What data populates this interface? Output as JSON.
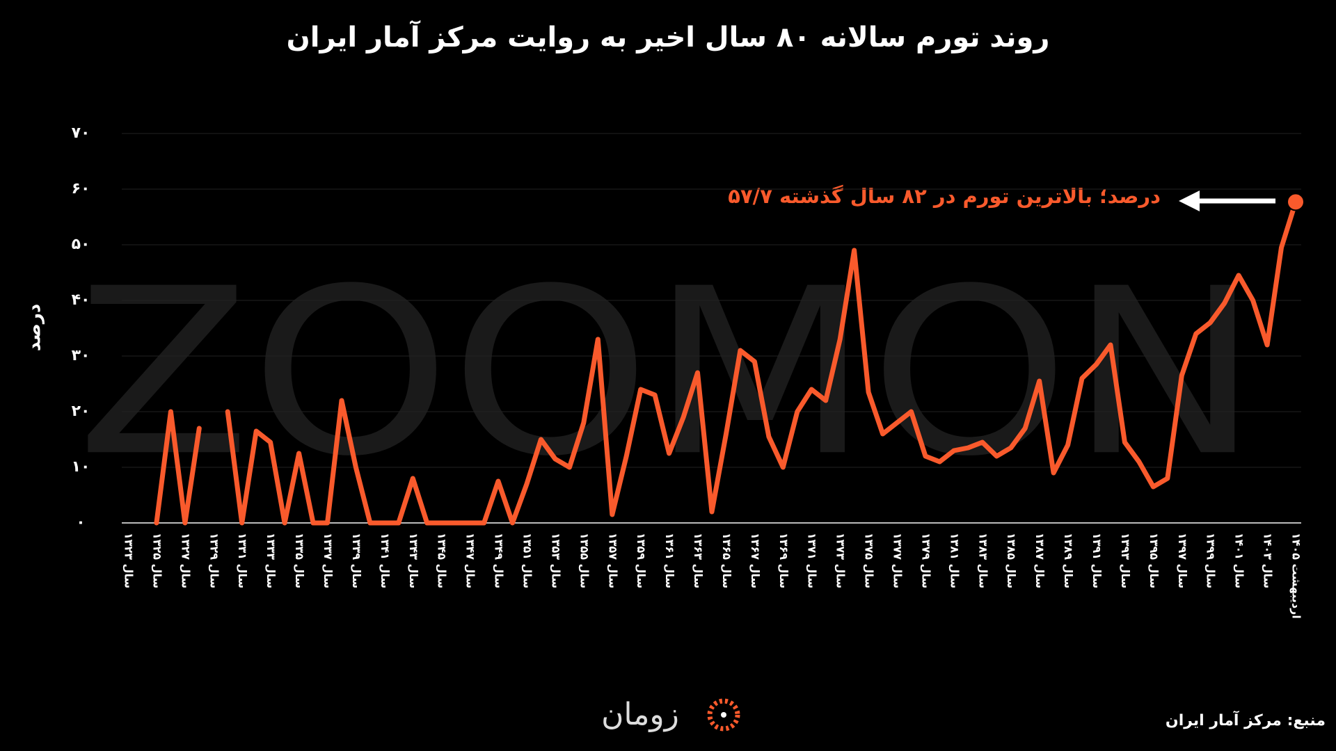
{
  "chart_data": {
    "type": "line",
    "title": "روند تورم سالانه ۸۰ سال اخیر به روایت مرکز آمار ایران",
    "y_label": "درصد",
    "watermark": "ZOOMON",
    "annotation": "۵۷/۷ درصد؛ بالاترین تورم در ۸۲ سال گذشته",
    "source": "منبع: مرکز آمار ایران",
    "logo": "زومان",
    "color": "#f95a2c",
    "categories": [
      "سال ۱۳۲۳",
      null,
      "سال ۱۳۲۵",
      null,
      "سال ۱۳۲۷",
      null,
      "سال ۱۳۲۹",
      null,
      "سال ۱۳۳۱",
      null,
      "سال ۱۳۳۳",
      null,
      "سال ۱۳۳۵",
      null,
      "سال ۱۳۳۷",
      null,
      "سال ۱۳۳۹",
      null,
      "سال ۱۳۴۱",
      null,
      "سال ۱۳۴۳",
      null,
      "سال ۱۳۴۵",
      null,
      "سال ۱۳۴۷",
      null,
      "سال ۱۳۴۹",
      null,
      "سال ۱۳۵۱",
      null,
      "سال ۱۳۵۳",
      null,
      "سال ۱۳۵۵",
      null,
      "سال ۱۳۵۷",
      null,
      "سال ۱۳۵۹",
      null,
      "سال ۱۳۶۱",
      null,
      "سال ۱۳۶۳",
      null,
      "سال ۱۳۶۵",
      null,
      "سال ۱۳۶۷",
      null,
      "سال ۱۳۶۹",
      null,
      "سال ۱۳۷۱",
      null,
      "سال ۱۳۷۳",
      null,
      "سال ۱۳۷۵",
      null,
      "سال ۱۳۷۷",
      null,
      "سال ۱۳۷۹",
      null,
      "سال ۱۳۸۱",
      null,
      "سال ۱۳۸۳",
      null,
      "سال ۱۳۸۵",
      null,
      "سال ۱۳۸۷",
      null,
      "سال ۱۳۸۹",
      null,
      "سال ۱۳۹۱",
      null,
      "سال ۱۳۹۳",
      null,
      "سال ۱۳۹۵",
      null,
      "سال ۱۳۹۷",
      null,
      "سال ۱۳۹۹",
      null,
      "سال ۱۴۰۱",
      null,
      "سال ۱۴۰۳",
      null,
      "اردیبهشت ۱۴۰۵"
    ],
    "values": [
      0,
      null,
      0,
      20,
      0,
      17,
      null,
      20,
      0,
      16.5,
      14.5,
      0,
      12.5,
      0,
      0,
      22,
      10,
      0,
      0,
      0,
      8,
      0,
      0,
      0,
      0,
      0,
      7.5,
      0,
      7,
      15,
      11.5,
      10,
      18,
      33,
      1.5,
      12,
      24,
      23,
      12.5,
      19,
      27,
      2,
      16,
      31,
      29,
      15.5,
      10,
      20,
      24,
      22,
      33,
      49,
      23.5,
      16,
      18,
      20,
      12,
      11,
      13,
      13.5,
      14.5,
      12,
      13.5,
      17,
      25.5,
      9,
      14,
      26,
      28.5,
      32,
      14.5,
      11,
      6.5,
      8,
      26.5,
      34,
      36,
      39.5,
      44.5,
      40,
      32,
      49.5,
      57.7
    ],
    "ylim": [
      0,
      70
    ],
    "yticks": [
      {
        "value": 0,
        "label": "۰"
      },
      {
        "value": 10,
        "label": "۱۰"
      },
      {
        "value": 20,
        "label": "۲۰"
      },
      {
        "value": 30,
        "label": "۳۰"
      },
      {
        "value": 40,
        "label": "۴۰"
      },
      {
        "value": 50,
        "label": "۵۰"
      },
      {
        "value": 60,
        "label": "۶۰"
      },
      {
        "value": 70,
        "label": "۷۰"
      }
    ],
    "grid": true
  }
}
